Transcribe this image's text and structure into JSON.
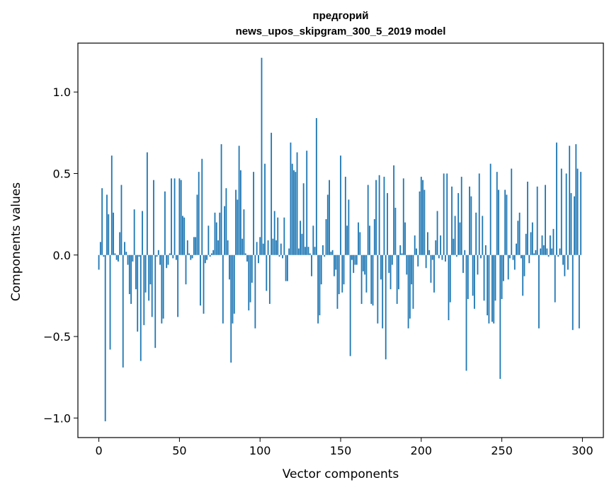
{
  "chart_data": {
    "type": "bar",
    "title_line1": "предгорий",
    "title_line2": "news_upos_skipgram_300_5_2019 model",
    "xlabel": "Vector components",
    "ylabel": "Components values",
    "xlim": [
      -13,
      313
    ],
    "ylim": [
      -1.12,
      1.3
    ],
    "xticks": [
      0,
      50,
      100,
      150,
      200,
      250,
      300
    ],
    "yticks": [
      -1.0,
      -0.5,
      0.0,
      0.5,
      1.0
    ],
    "xtick_labels": [
      "0",
      "50",
      "100",
      "150",
      "200",
      "250",
      "300"
    ],
    "ytick_labels": [
      "−1.0",
      "−0.5",
      "0.0",
      "0.5",
      "1.0"
    ],
    "bar_color": "#1f77b4",
    "values": [
      -0.09,
      0.08,
      0.41,
      -0.01,
      -1.02,
      0.37,
      0.25,
      -0.58,
      0.61,
      0.26,
      0.01,
      -0.03,
      -0.04,
      0.14,
      0.43,
      -0.69,
      0.08,
      0.02,
      -0.06,
      -0.24,
      -0.3,
      -0.04,
      0.28,
      -0.21,
      -0.47,
      -0.01,
      -0.65,
      0.27,
      -0.43,
      -0.23,
      0.63,
      -0.28,
      -0.18,
      -0.38,
      0.46,
      -0.57,
      -0.01,
      0.03,
      -0.06,
      -0.42,
      -0.39,
      0.39,
      -0.08,
      -0.06,
      0.01,
      0.47,
      -0.02,
      0.47,
      -0.03,
      -0.38,
      0.47,
      0.46,
      0.24,
      0.23,
      -0.18,
      0.09,
      0.01,
      -0.03,
      -0.02,
      0.11,
      0.11,
      0.37,
      0.51,
      -0.31,
      0.59,
      -0.36,
      -0.05,
      -0.03,
      0.18,
      -0.01,
      0.01,
      0.03,
      0.26,
      0.2,
      0.09,
      0.26,
      0.68,
      -0.42,
      0.3,
      0.41,
      0.09,
      -0.15,
      -0.66,
      -0.42,
      -0.36,
      0.4,
      0.34,
      0.67,
      0.52,
      0.1,
      0.28,
      0.01,
      -0.04,
      -0.34,
      -0.29,
      -0.17,
      0.51,
      -0.45,
      0.08,
      -0.05,
      0.11,
      1.21,
      0.07,
      0.56,
      -0.22,
      0.09,
      -0.3,
      0.75,
      0.1,
      0.27,
      0.09,
      0.23,
      -0.01,
      0.07,
      -0.02,
      0.23,
      -0.16,
      -0.16,
      0.04,
      0.69,
      0.56,
      0.52,
      0.51,
      0.63,
      0.04,
      0.21,
      0.13,
      0.44,
      0.05,
      0.64,
      0.05,
      0.01,
      -0.13,
      0.18,
      0.05,
      0.84,
      -0.42,
      -0.37,
      -0.18,
      0.06,
      -0.01,
      0.22,
      0.37,
      0.46,
      0.02,
      0.03,
      -0.13,
      -0.09,
      -0.33,
      -0.24,
      0.61,
      -0.23,
      -0.18,
      0.48,
      0.18,
      0.34,
      -0.62,
      -0.03,
      -0.11,
      -0.06,
      -0.06,
      0.2,
      0.14,
      -0.3,
      -0.1,
      -0.12,
      -0.23,
      0.43,
      0.18,
      -0.3,
      -0.31,
      0.22,
      0.46,
      -0.42,
      0.49,
      -0.15,
      -0.45,
      0.48,
      -0.64,
      0.38,
      -0.11,
      -0.21,
      -0.06,
      0.55,
      0.29,
      -0.3,
      -0.21,
      0.06,
      0.01,
      0.47,
      0.2,
      -0.12,
      -0.45,
      -0.39,
      -0.18,
      -0.33,
      0.12,
      0.04,
      -0.07,
      0.39,
      0.48,
      0.46,
      0.4,
      -0.08,
      0.14,
      0.03,
      -0.17,
      -0.03,
      -0.23,
      0.09,
      0.27,
      -0.02,
      0.12,
      -0.03,
      0.5,
      -0.04,
      0.5,
      -0.4,
      -0.29,
      0.42,
      0.1,
      0.24,
      -0.01,
      0.38,
      0.2,
      0.48,
      -0.11,
      0.03,
      -0.71,
      -0.27,
      0.42,
      0.36,
      -0.25,
      -0.33,
      0.26,
      -0.12,
      0.5,
      -0.02,
      0.24,
      -0.28,
      0.06,
      -0.37,
      -0.42,
      0.56,
      -0.41,
      -0.42,
      -0.28,
      0.51,
      0.4,
      -0.76,
      -0.27,
      -0.16,
      0.4,
      0.37,
      -0.15,
      -0.02,
      0.53,
      -0.03,
      -0.09,
      0.07,
      0.21,
      0.26,
      -0.02,
      -0.25,
      -0.13,
      0.13,
      0.45,
      -0.05,
      0.14,
      0.2,
      0.01,
      0.03,
      0.42,
      -0.45,
      0.04,
      0.12,
      0.06,
      0.43,
      0.04,
      -0.01,
      0.12,
      0.04,
      0.16,
      -0.29,
      0.69,
      -0.01,
      0.04,
      0.53,
      -0.06,
      -0.13,
      0.5,
      -0.09,
      0.67,
      0.38,
      -0.46,
      0.36,
      0.68,
      0.53,
      -0.45,
      0.51
    ]
  }
}
